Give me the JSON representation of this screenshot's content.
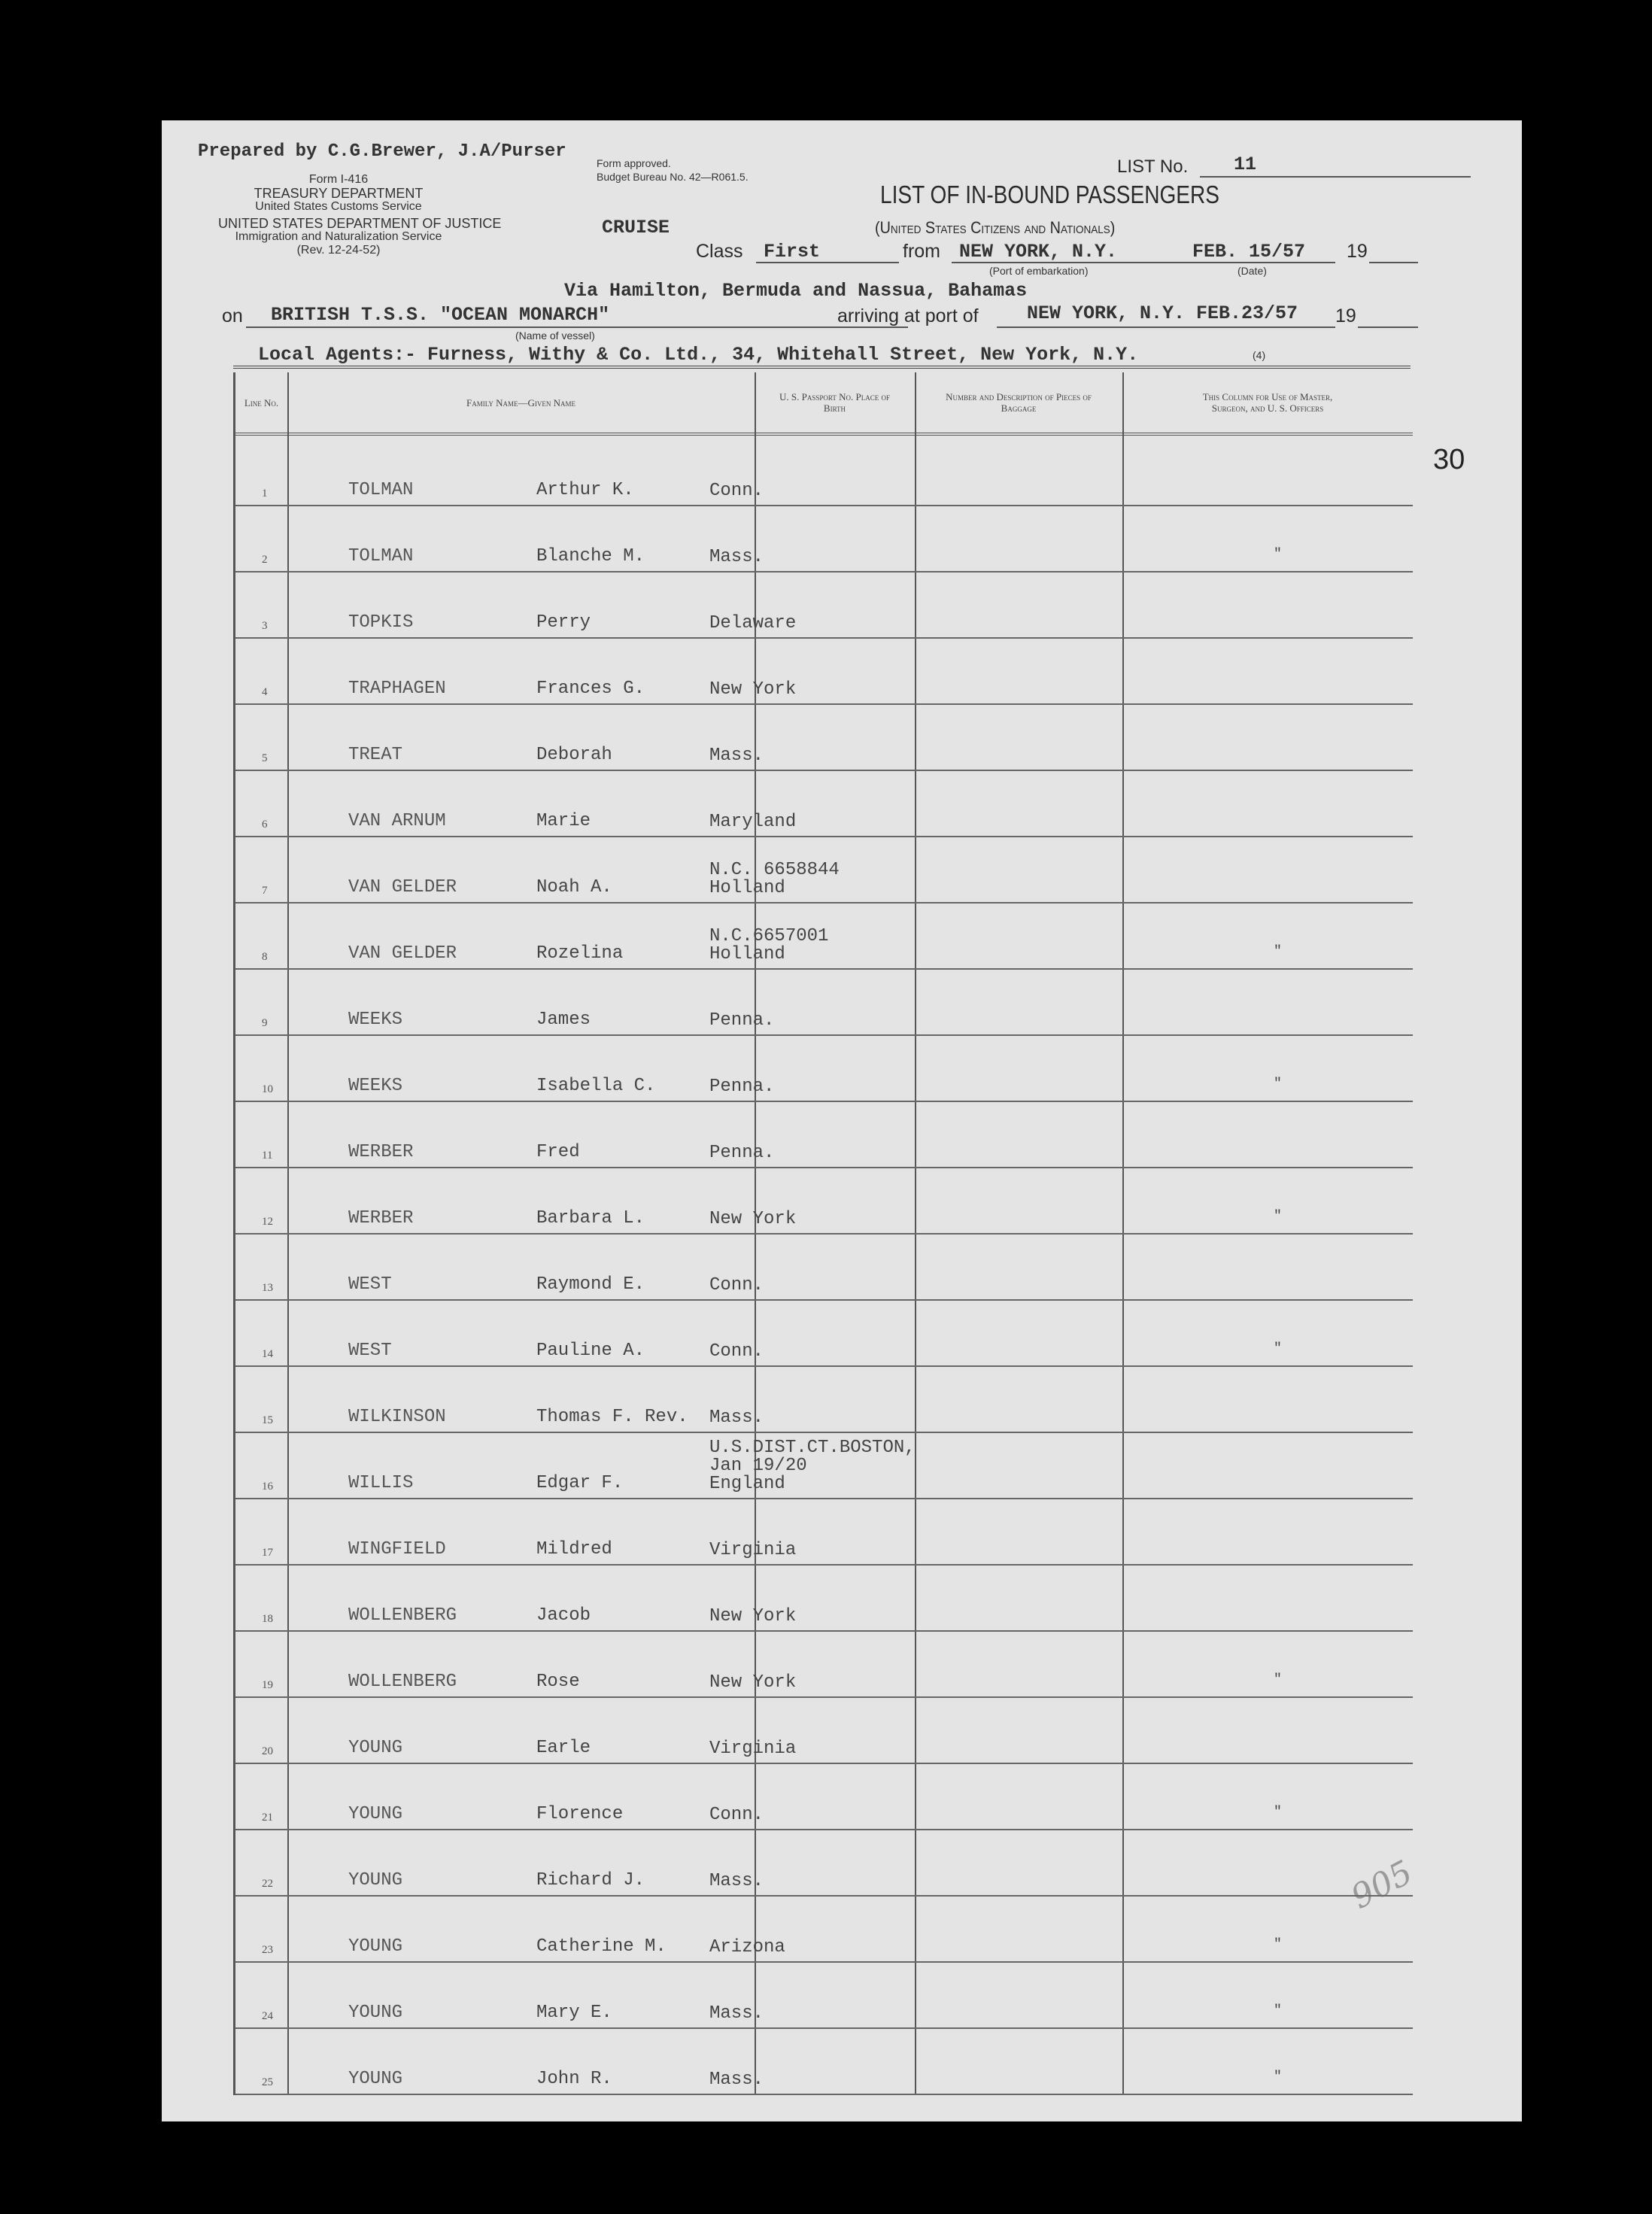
{
  "header": {
    "prepared_by": "Prepared by C.G.Brewer, J.A/Purser",
    "form_no": "Form I-416",
    "treasury": "TREASURY DEPARTMENT",
    "customs": "United States Customs Service",
    "justice": "UNITED STATES DEPARTMENT OF JUSTICE",
    "ins": "Immigration and Naturalization Service",
    "rev": "(Rev. 12-24-52)",
    "form_approved": "Form approved.",
    "budget": "Budget Bureau No. 42—R061.5.",
    "cruise": "CRUISE",
    "list_no_label": "LIST No.",
    "list_no": "11",
    "title": "LIST OF IN-BOUND PASSENGERS",
    "subtitle": "(United States Citizens and Nationals)",
    "class_label": "Class",
    "class_value": "First",
    "from_label": "from",
    "from_value": "NEW YORK, N.Y.",
    "port_embark_caption": "(Port of embarkation)",
    "date_value": "FEB. 15/57",
    "date_caption": "(Date)",
    "year_prefix": "19",
    "via": "Via Hamilton, Bermuda and Nassua, Bahamas",
    "on_label": "on",
    "vessel": "BRITISH T.S.S. \"OCEAN MONARCH\"",
    "vessel_caption": "(Name of vessel)",
    "arriving_label": "arriving at port of",
    "arriving_value": "NEW YORK, N.Y. FEB.23/57",
    "agents": "Local Agents:- Furness, Withy & Co. Ltd., 34, Whitehall Street, New York, N.Y.",
    "footnote": "(4)",
    "page_number": "30"
  },
  "columns": {
    "line": "Line No.",
    "name": "Family Name—Given Name",
    "passport": "U. S. Passport No. Place of Birth",
    "baggage": "Number and Description of Pieces of Baggage",
    "officers": "This Column for Use of Master, Surgeon, and U. S. Officers"
  },
  "rows": [
    {
      "line": "1",
      "family": "TOLMAN",
      "given": "Arthur K.",
      "birth": "Conn.",
      "mark": ""
    },
    {
      "line": "2",
      "family": "TOLMAN",
      "given": "Blanche M.",
      "birth": "Mass.",
      "mark": "\""
    },
    {
      "line": "3",
      "family": "TOPKIS",
      "given": "Perry",
      "birth": "Delaware",
      "mark": ""
    },
    {
      "line": "4",
      "family": "TRAPHAGEN",
      "given": "Frances G.",
      "birth": "New York",
      "mark": ""
    },
    {
      "line": "5",
      "family": "TREAT",
      "given": "Deborah",
      "birth": "Mass.",
      "mark": ""
    },
    {
      "line": "6",
      "family": "VAN ARNUM",
      "given": "Marie",
      "birth": "Maryland",
      "mark": ""
    },
    {
      "line": "7",
      "family": "VAN GELDER",
      "given": "Noah A.",
      "birth": "N.C. 6658844\nHolland",
      "mark": ""
    },
    {
      "line": "8",
      "family": "VAN GELDER",
      "given": "Rozelina",
      "birth": "N.C.6657001\nHolland",
      "mark": "\""
    },
    {
      "line": "9",
      "family": "WEEKS",
      "given": "James",
      "birth": "Penna.",
      "mark": ""
    },
    {
      "line": "10",
      "family": "WEEKS",
      "given": "Isabella C.",
      "birth": "Penna.",
      "mark": "\""
    },
    {
      "line": "11",
      "family": "WERBER",
      "given": "Fred",
      "birth": "Penna.",
      "mark": ""
    },
    {
      "line": "12",
      "family": "WERBER",
      "given": "Barbara L.",
      "birth": "New York",
      "mark": "\""
    },
    {
      "line": "13",
      "family": "WEST",
      "given": "Raymond E.",
      "birth": "Conn.",
      "mark": ""
    },
    {
      "line": "14",
      "family": "WEST",
      "given": "Pauline A.",
      "birth": "Conn.",
      "mark": "\""
    },
    {
      "line": "15",
      "family": "WILKINSON",
      "given": "Thomas F. Rev.",
      "birth": "Mass.",
      "mark": ""
    },
    {
      "line": "16",
      "family": "WILLIS",
      "given": "Edgar F.",
      "birth": "U.S.DIST.CT.BOSTON,\nJan 19/20\nEngland",
      "mark": ""
    },
    {
      "line": "17",
      "family": "WINGFIELD",
      "given": "Mildred",
      "birth": "Virginia",
      "mark": ""
    },
    {
      "line": "18",
      "family": "WOLLENBERG",
      "given": "Jacob",
      "birth": "New York",
      "mark": ""
    },
    {
      "line": "19",
      "family": "WOLLENBERG",
      "given": "Rose",
      "birth": "New York",
      "mark": "\""
    },
    {
      "line": "20",
      "family": "YOUNG",
      "given": "Earle",
      "birth": "Virginia",
      "mark": ""
    },
    {
      "line": "21",
      "family": "YOUNG",
      "given": "Florence",
      "birth": "Conn.",
      "mark": "\""
    },
    {
      "line": "22",
      "family": "YOUNG",
      "given": "Richard J.",
      "birth": "Mass.",
      "mark": ""
    },
    {
      "line": "23",
      "family": "YOUNG",
      "given": "Catherine M.",
      "birth": "Arizona",
      "mark": "\""
    },
    {
      "line": "24",
      "family": "YOUNG",
      "given": "Mary E.",
      "birth": "Mass.",
      "mark": "\""
    },
    {
      "line": "25",
      "family": "YOUNG",
      "given": "John R.",
      "birth": "Mass.",
      "mark": "\""
    }
  ],
  "annotation": "905"
}
